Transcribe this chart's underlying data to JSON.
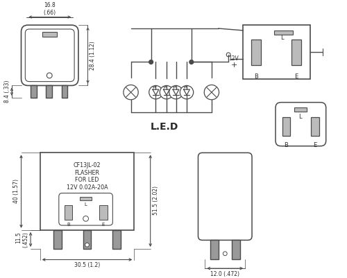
{
  "line_color": "#4a4a4a",
  "text_color": "#2a2a2a",
  "title_lines": [
    "CF13JL-02",
    "FLASHER",
    "FOR LED",
    "12V 0.02A-20A"
  ],
  "led_label": "L.E.D",
  "dim_top_width": "16.8\n(.66)",
  "dim_top_height": "28.4 (1.12)",
  "dim_top_pin": "8.4 (.33)",
  "dim_bot_height": "40 (1.57)",
  "dim_bot_pinh": "11.5\n(.452)",
  "dim_bot_width": "30.5 (1.2)",
  "dim_bot_total": "51.5 (2.02)",
  "dim_side_width": "12.0 (.472)",
  "v_label": "12V",
  "plus_label": "+"
}
